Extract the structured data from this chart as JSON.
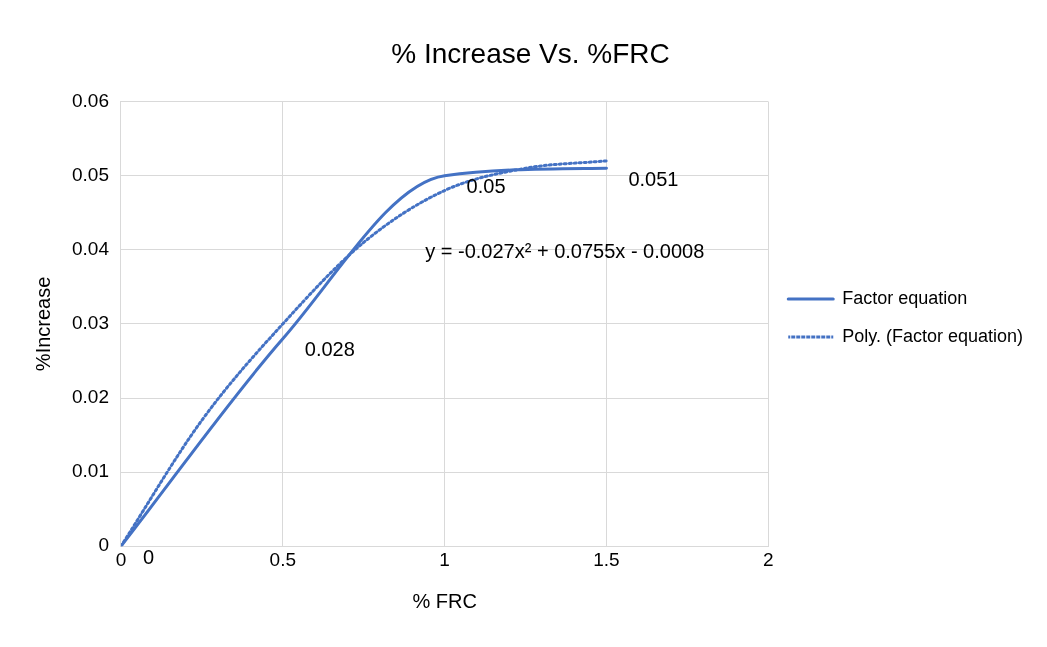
{
  "chart_data": {
    "type": "line",
    "title": "% Increase Vs. %FRC",
    "xlabel": "% FRC",
    "ylabel": "%Increase",
    "x": [
      0,
      0.5,
      1,
      1.5
    ],
    "series": [
      {
        "name": "Factor equation",
        "color": "#4472c4",
        "values": [
          0,
          0.028,
          0.05,
          0.051
        ],
        "value_labels": [
          "0",
          "0.028",
          "0.05",
          "0.051"
        ],
        "line_style": "solid"
      },
      {
        "name": "Poly. (Factor equation)",
        "color": "#4472c4",
        "type": "line",
        "x": [
          0,
          0.25,
          0.5,
          0.75,
          1,
          1.25,
          1.5
        ],
        "values": [
          0,
          0.017,
          0.03,
          0.041,
          0.048,
          0.051,
          0.052
        ],
        "line_style": "dotted"
      }
    ],
    "annotations": [
      "y = -0.027x² + 0.0755x - 0.0008"
    ],
    "xlim": [
      0,
      2
    ],
    "xticks": [
      0,
      0.5,
      1,
      1.5,
      2
    ],
    "ylim": [
      0,
      0.06
    ],
    "yticks": [
      0,
      0.01,
      0.02,
      0.03,
      0.04,
      0.05,
      0.06
    ],
    "grid": true,
    "legend": "right",
    "marker": "none"
  }
}
